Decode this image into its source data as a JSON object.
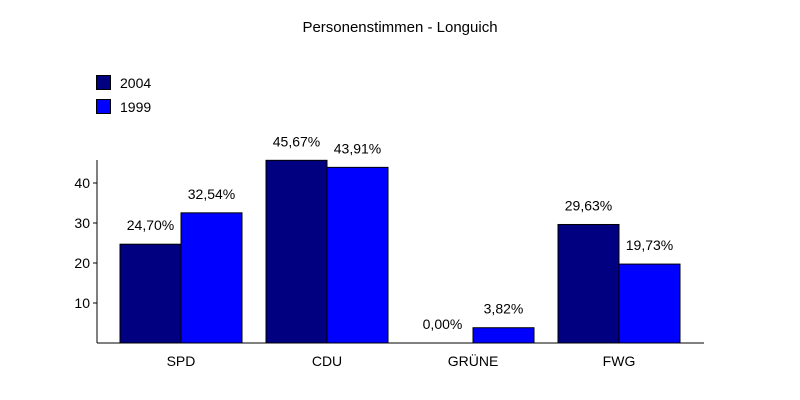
{
  "chart_data": {
    "type": "bar",
    "title": "Personenstimmen - Longuich",
    "categories": [
      "SPD",
      "CDU",
      "GRÜNE",
      "FWG"
    ],
    "series": [
      {
        "name": "2004",
        "color": "#000080",
        "values": [
          24.7,
          45.67,
          0.0,
          29.63
        ],
        "labels": [
          "24,70%",
          "45,67%",
          "0,00%",
          "29,63%"
        ]
      },
      {
        "name": "1999",
        "color": "#0000ff",
        "values": [
          32.54,
          43.91,
          3.82,
          19.73
        ],
        "labels": [
          "32,54%",
          "43,91%",
          "3,82%",
          "19,73%"
        ]
      }
    ],
    "yticks": [
      "10",
      "20",
      "30",
      "40"
    ],
    "ylim": [
      0,
      46
    ],
    "legend_position": "top-left",
    "grid": false
  }
}
